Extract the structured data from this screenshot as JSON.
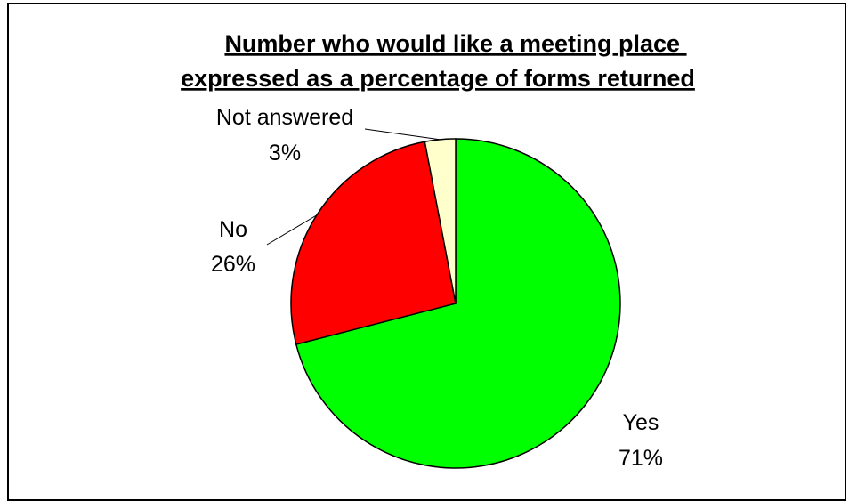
{
  "chart_data": {
    "type": "pie",
    "title": [
      "Number who would like a meeting place ",
      "expressed as a percentage of forms returned"
    ],
    "categories": [
      "Yes",
      "No",
      "Not answered"
    ],
    "values": [
      71,
      26,
      3
    ],
    "value_labels": [
      "71%",
      "26%",
      "3%"
    ],
    "colors": [
      "#00ff00",
      "#ff0000",
      "#ffffcc"
    ],
    "legend": "none",
    "start": "12 o'clock",
    "direction": "clockwise"
  }
}
